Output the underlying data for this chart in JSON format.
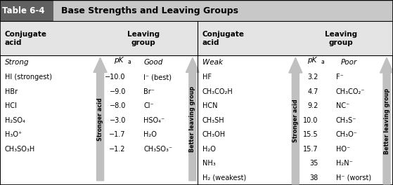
{
  "title": "Table 6-4",
  "title_text": "Base Strengths and Leaving Groups",
  "left_acids": [
    "HI (strongest)",
    "HBr",
    "HCl",
    "H₂SO₄",
    "H₃O⁺",
    "CH₃SO₃H"
  ],
  "left_pka_full": [
    "−10.0",
    "−9.0",
    "−8.0",
    "−3.0",
    "−1.7",
    "−1.2"
  ],
  "left_leaving": [
    "I⁻ (best)",
    "Br⁻",
    "Cl⁻",
    "HSO₄⁻",
    "H₂O",
    "CH₃SO₃⁻"
  ],
  "right_acids": [
    "HF",
    "CH₃CO₂H",
    "HCN",
    "CH₃SH",
    "CH₃OH",
    "H₂O",
    "NH₃",
    "H₂ (weakest)"
  ],
  "right_pka": [
    "3.2",
    "4.7",
    "9.2",
    "10.0",
    "15.5",
    "15.7",
    "35",
    "38"
  ],
  "right_leaving": [
    "F⁻",
    "CH₃CO₂⁻",
    "NC⁻",
    "CH₃S⁻",
    "CH₃O⁻",
    "HO⁻",
    "H₂N⁻",
    "H⁻ (worst)"
  ],
  "arrow_color": "#b8b8b8",
  "bg_color": "#ffffff"
}
